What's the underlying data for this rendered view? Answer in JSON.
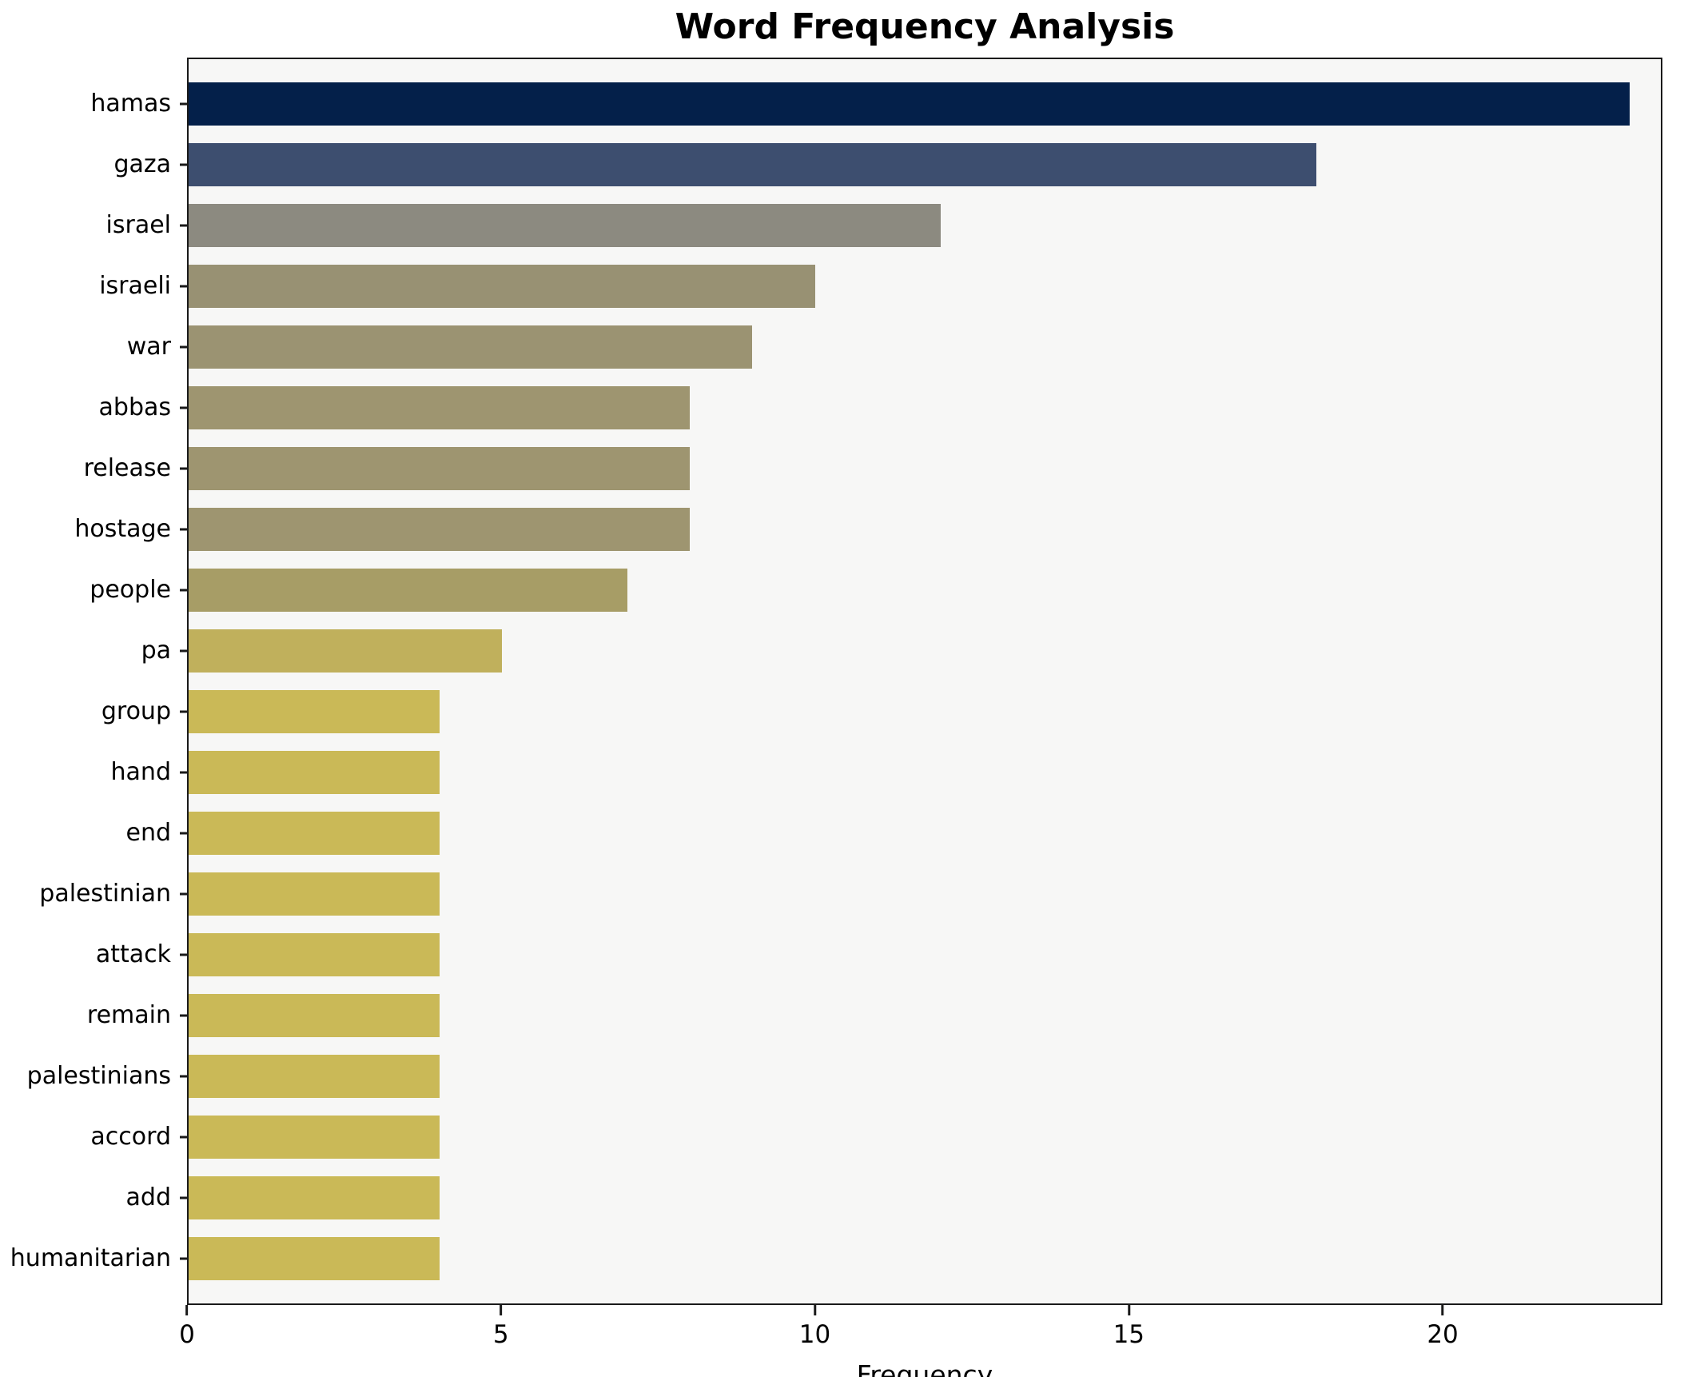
{
  "title": "Word Frequency Analysis",
  "chart_data": {
    "type": "bar",
    "orientation": "horizontal",
    "title": "Word Frequency Analysis",
    "xlabel": "Frequency",
    "ylabel": "",
    "xlim": [
      0,
      23.5
    ],
    "xticks": [
      "0",
      "5",
      "10",
      "15",
      "20"
    ],
    "xtick_values": [
      0,
      5,
      10,
      15,
      20
    ],
    "grid": false,
    "plot_background": "#f7f7f6",
    "categories": [
      "hamas",
      "gaza",
      "israel",
      "israeli",
      "war",
      "abbas",
      "release",
      "hostage",
      "people",
      "pa",
      "group",
      "hand",
      "end",
      "palestinian",
      "attack",
      "remain",
      "palestinians",
      "accord",
      "add",
      "humanitarian"
    ],
    "values": [
      23,
      18,
      12,
      10,
      9,
      8,
      8,
      8,
      7,
      5,
      4,
      4,
      4,
      4,
      4,
      4,
      4,
      4,
      4,
      4
    ],
    "colors": [
      "#04204a",
      "#3d4e6f",
      "#8c8a80",
      "#989173",
      "#9b9372",
      "#9e9570",
      "#9e9570",
      "#9e9570",
      "#a79d66",
      "#c0b05c",
      "#cab957",
      "#cab957",
      "#cab957",
      "#cab957",
      "#cab957",
      "#cab957",
      "#cab957",
      "#cab957",
      "#cab957",
      "#cab957"
    ]
  }
}
